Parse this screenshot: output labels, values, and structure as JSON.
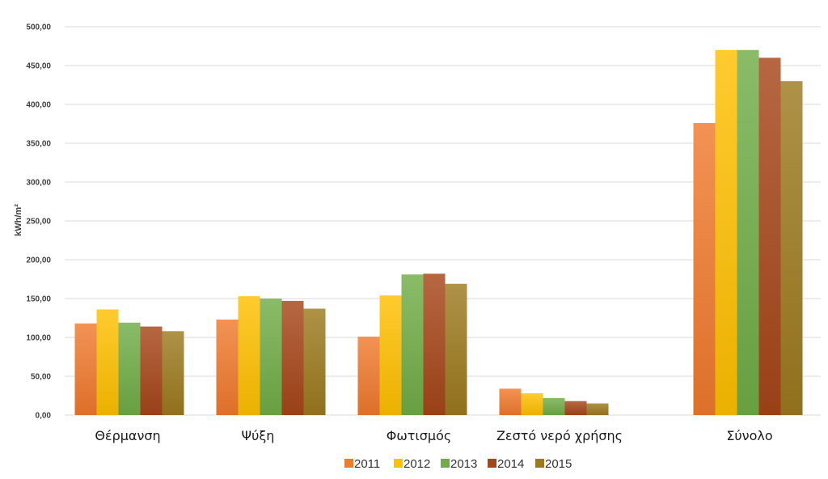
{
  "chart_data": {
    "type": "bar",
    "title": "",
    "xlabel": "",
    "ylabel": "kWh/m²",
    "ylim": [
      0,
      500
    ],
    "grid": true,
    "legend_position": "bottom",
    "y_ticks": [
      "0,00",
      "50,00",
      "100,00",
      "150,00",
      "200,00",
      "250,00",
      "300,00",
      "350,00",
      "400,00",
      "450,00",
      "500,00"
    ],
    "categories": [
      "Θέρμανση",
      "Ψύξη",
      "Φωτισμός",
      "Ζεστό νερό χρήσης",
      "Σύνολο"
    ],
    "series": [
      {
        "name": "2011",
        "color": "#f07a2e",
        "values": [
          118,
          123,
          101,
          34,
          376
        ]
      },
      {
        "name": "2012",
        "color": "#ffc000",
        "values": [
          136,
          153,
          154,
          28,
          470
        ]
      },
      {
        "name": "2013",
        "color": "#70ad47",
        "values": [
          119,
          150,
          181,
          22,
          470
        ]
      },
      {
        "name": "2014",
        "color": "#a64619",
        "values": [
          114,
          147,
          182,
          18,
          460
        ]
      },
      {
        "name": "2015",
        "color": "#9c7a1e",
        "values": [
          108,
          137,
          169,
          15,
          430
        ]
      }
    ]
  }
}
